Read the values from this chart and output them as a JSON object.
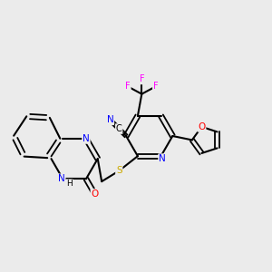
{
  "bg_color": "#ebebeb",
  "bond_color": "#000000",
  "atom_colors": {
    "N": "#0000ff",
    "O": "#ff0000",
    "S": "#ccaa00",
    "F": "#ff00ff",
    "C": "#000000"
  },
  "figsize": [
    3.0,
    3.0
  ],
  "dpi": 100
}
